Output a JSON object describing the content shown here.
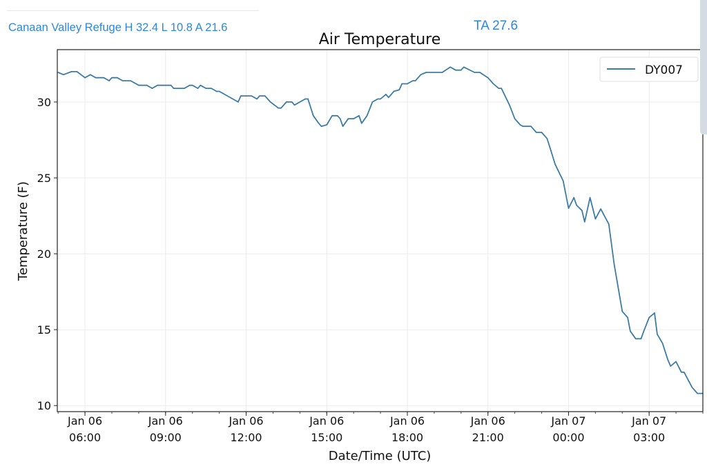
{
  "header": {
    "station_summary": "Canaan Valley Refuge H 32.4 L 10.8 A 21.6",
    "ta": "TA 27.6"
  },
  "chart_data": {
    "type": "line",
    "title": "Air Temperature",
    "xlabel": "Date/Time (UTC)",
    "ylabel": "Temperature (F)",
    "x_units": "hours since Jan 06 00:00 UTC",
    "xlim": [
      4.97,
      29.0
    ],
    "ylim": [
      9.6,
      33.45
    ],
    "grid": true,
    "legend_position": "top-right",
    "yticks": [
      10,
      15,
      20,
      25,
      30
    ],
    "xticks": [
      {
        "value": 6,
        "line1": "Jan 06",
        "line2": "06:00"
      },
      {
        "value": 9,
        "line1": "Jan 06",
        "line2": "09:00"
      },
      {
        "value": 12,
        "line1": "Jan 06",
        "line2": "12:00"
      },
      {
        "value": 15,
        "line1": "Jan 06",
        "line2": "15:00"
      },
      {
        "value": 18,
        "line1": "Jan 06",
        "line2": "18:00"
      },
      {
        "value": 21,
        "line1": "Jan 06",
        "line2": "21:00"
      },
      {
        "value": 24,
        "line1": "Jan 07",
        "line2": "00:00"
      },
      {
        "value": 27,
        "line1": "Jan 07",
        "line2": "03:00"
      }
    ],
    "series": [
      {
        "name": "DY007",
        "color": "#3a7ca5",
        "x": [
          5.0,
          5.2,
          5.5,
          5.7,
          6.0,
          6.2,
          6.4,
          6.7,
          6.9,
          7.0,
          7.2,
          7.4,
          7.7,
          8.0,
          8.3,
          8.5,
          8.7,
          9.2,
          9.3,
          9.7,
          9.9,
          10.0,
          10.2,
          10.3,
          10.5,
          10.7,
          10.9,
          11.0,
          11.7,
          11.8,
          12.2,
          12.4,
          12.5,
          12.7,
          12.9,
          13.2,
          13.3,
          13.5,
          13.7,
          13.8,
          14.2,
          14.3,
          14.5,
          14.7,
          14.8,
          15.0,
          15.2,
          15.4,
          15.5,
          15.6,
          15.8,
          16.0,
          16.2,
          16.3,
          16.5,
          16.7,
          16.9,
          17.0,
          17.2,
          17.3,
          17.5,
          17.7,
          17.8,
          18.0,
          18.2,
          18.3,
          18.5,
          18.7,
          19.3,
          19.6,
          19.8,
          20.0,
          20.1,
          20.5,
          20.7,
          21.0,
          21.2,
          21.4,
          21.5,
          21.8,
          22.0,
          22.2,
          22.3,
          22.6,
          22.8,
          23.0,
          23.2,
          23.3,
          23.5,
          23.8,
          24.0,
          24.2,
          24.3,
          24.5,
          24.6,
          24.8,
          25.0,
          25.2,
          25.5,
          25.7,
          26.0,
          26.2,
          26.3,
          26.5,
          26.7,
          26.8,
          27.0,
          27.2,
          27.3,
          27.5,
          27.7,
          27.8,
          28.0,
          28.2,
          28.3,
          28.6,
          28.8,
          29.0
        ],
        "y": [
          31.95,
          31.8,
          32.0,
          32.0,
          31.6,
          31.8,
          31.6,
          31.6,
          31.4,
          31.6,
          31.6,
          31.4,
          31.4,
          31.1,
          31.1,
          30.9,
          31.1,
          31.1,
          30.9,
          30.9,
          31.1,
          31.1,
          30.9,
          31.1,
          30.9,
          30.9,
          30.7,
          30.7,
          30.0,
          30.4,
          30.4,
          30.2,
          30.4,
          30.4,
          30.0,
          29.6,
          29.6,
          30.0,
          30.0,
          29.8,
          30.2,
          30.2,
          29.1,
          28.6,
          28.4,
          28.5,
          29.1,
          29.1,
          28.9,
          28.4,
          28.9,
          28.9,
          29.1,
          28.6,
          29.1,
          30.0,
          30.2,
          30.2,
          30.5,
          30.3,
          30.7,
          30.8,
          31.2,
          31.2,
          31.4,
          31.4,
          31.8,
          31.95,
          31.95,
          32.3,
          32.1,
          32.1,
          32.3,
          31.95,
          31.95,
          31.6,
          31.2,
          30.9,
          30.9,
          29.8,
          28.9,
          28.5,
          28.4,
          28.4,
          28.0,
          28.0,
          27.6,
          27.05,
          25.9,
          24.8,
          23.0,
          23.7,
          23.2,
          22.85,
          22.1,
          23.7,
          22.3,
          22.95,
          21.95,
          19.3,
          16.2,
          15.8,
          14.9,
          14.4,
          14.4,
          14.9,
          15.8,
          16.1,
          14.7,
          14.1,
          13.0,
          12.6,
          12.9,
          12.2,
          12.2,
          11.2,
          10.8,
          10.8
        ]
      }
    ]
  }
}
